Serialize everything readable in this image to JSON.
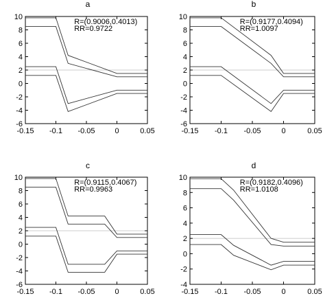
{
  "chart_data": [
    {
      "type": "line",
      "title": "a",
      "xlabel": "",
      "ylabel": "",
      "xlim": [
        -0.15,
        0.05
      ],
      "ylim": [
        -6,
        10
      ],
      "xticks": [
        "-0.15",
        "-0.1",
        "-0.05",
        "0",
        "0.05"
      ],
      "yticks": [
        "10",
        "8",
        "6",
        "4",
        "2",
        "0",
        "-2",
        "-4",
        "-6"
      ],
      "grid": false,
      "annotations": [
        "R=(0.9006,0.4013)",
        "RR=0.9722"
      ],
      "reference_line": 2,
      "series": [
        {
          "x": [
            -0.15,
            -0.1,
            -0.08,
            0,
            0.05
          ],
          "y": [
            9.8,
            9.8,
            4.2,
            1.5,
            1.5
          ]
        },
        {
          "x": [
            -0.15,
            -0.1,
            -0.08,
            0,
            0.05
          ],
          "y": [
            8.5,
            8.5,
            3.0,
            1.0,
            1.0
          ]
        },
        {
          "x": [
            -0.15,
            -0.1,
            -0.08,
            0,
            0.05
          ],
          "y": [
            2.5,
            2.5,
            -3.0,
            -1.0,
            -1.0
          ]
        },
        {
          "x": [
            -0.15,
            -0.1,
            -0.08,
            0,
            0.05
          ],
          "y": [
            1.2,
            1.2,
            -4.2,
            -1.5,
            -1.5
          ]
        }
      ]
    },
    {
      "type": "line",
      "title": "b",
      "xlabel": "",
      "ylabel": "",
      "xlim": [
        -0.15,
        0.05
      ],
      "ylim": [
        -6,
        10
      ],
      "xticks": [
        "-0.15",
        "-0.1",
        "-0.05",
        "0",
        "0.05"
      ],
      "yticks": [
        "10",
        "8",
        "6",
        "4",
        "2",
        "0",
        "-2",
        "-4",
        "-6"
      ],
      "grid": false,
      "annotations": [
        "R=(0.9177,0.4094)",
        "RR=1.0097"
      ],
      "reference_line": 2,
      "series": [
        {
          "x": [
            -0.15,
            -0.1,
            -0.02,
            0,
            0.05
          ],
          "y": [
            9.8,
            9.8,
            4.2,
            1.5,
            1.5
          ]
        },
        {
          "x": [
            -0.15,
            -0.1,
            -0.02,
            0,
            0.05
          ],
          "y": [
            8.5,
            8.5,
            3.0,
            1.0,
            1.0
          ]
        },
        {
          "x": [
            -0.15,
            -0.1,
            -0.02,
            0,
            0.05
          ],
          "y": [
            2.5,
            2.5,
            -3.0,
            -1.0,
            -1.0
          ]
        },
        {
          "x": [
            -0.15,
            -0.1,
            -0.02,
            0,
            0.05
          ],
          "y": [
            1.2,
            1.2,
            -4.2,
            -1.5,
            -1.5
          ]
        }
      ]
    },
    {
      "type": "line",
      "title": "c",
      "xlabel": "",
      "ylabel": "",
      "xlim": [
        -0.15,
        0.05
      ],
      "ylim": [
        -6,
        10
      ],
      "xticks": [
        "-0.15",
        "-0.1",
        "-0.05",
        "0",
        "0.05"
      ],
      "yticks": [
        "10",
        "8",
        "6",
        "4",
        "2",
        "0",
        "-2",
        "-4",
        "-6"
      ],
      "grid": false,
      "annotations": [
        "R=(0.9115,0.4067)",
        "RR=0.9963"
      ],
      "reference_line": 2,
      "series": [
        {
          "x": [
            -0.15,
            -0.1,
            -0.08,
            -0.02,
            0,
            0.05
          ],
          "y": [
            9.8,
            9.8,
            4.2,
            4.2,
            1.5,
            1.5
          ]
        },
        {
          "x": [
            -0.15,
            -0.1,
            -0.08,
            -0.02,
            0,
            0.05
          ],
          "y": [
            8.5,
            8.5,
            3.0,
            3.0,
            1.0,
            1.0
          ]
        },
        {
          "x": [
            -0.15,
            -0.1,
            -0.08,
            -0.02,
            0,
            0.05
          ],
          "y": [
            2.5,
            2.5,
            -3.0,
            -3.0,
            -1.0,
            -1.0
          ]
        },
        {
          "x": [
            -0.15,
            -0.1,
            -0.08,
            -0.02,
            0,
            0.05
          ],
          "y": [
            1.2,
            1.2,
            -4.2,
            -4.2,
            -1.5,
            -1.5
          ]
        }
      ]
    },
    {
      "type": "line",
      "title": "d",
      "xlabel": "",
      "ylabel": "",
      "xlim": [
        -0.15,
        0.05
      ],
      "ylim": [
        -4,
        10
      ],
      "xticks": [
        "-0.15",
        "-0.1",
        "-0.05",
        "0",
        "0.05"
      ],
      "yticks": [
        "10",
        "8",
        "6",
        "4",
        "2",
        "0",
        "-2",
        "-4"
      ],
      "grid": false,
      "annotations": [
        "R=(0.9182,0.4096)",
        "RR=1.0108"
      ],
      "reference_line": 2,
      "series": [
        {
          "x": [
            -0.15,
            -0.1,
            -0.08,
            -0.02,
            0,
            0.05
          ],
          "y": [
            9.8,
            9.8,
            8.3,
            2.0,
            1.5,
            1.5
          ]
        },
        {
          "x": [
            -0.15,
            -0.1,
            -0.08,
            -0.02,
            0,
            0.05
          ],
          "y": [
            8.5,
            8.5,
            7.0,
            1.2,
            1.0,
            1.0
          ]
        },
        {
          "x": [
            -0.15,
            -0.1,
            -0.08,
            -0.02,
            0,
            0.05
          ],
          "y": [
            2.5,
            2.5,
            1.1,
            -1.5,
            -1.0,
            -1.0
          ]
        },
        {
          "x": [
            -0.15,
            -0.1,
            -0.08,
            -0.02,
            0,
            0.05
          ],
          "y": [
            1.2,
            1.2,
            -0.2,
            -2.1,
            -1.5,
            -1.5
          ]
        }
      ]
    }
  ]
}
